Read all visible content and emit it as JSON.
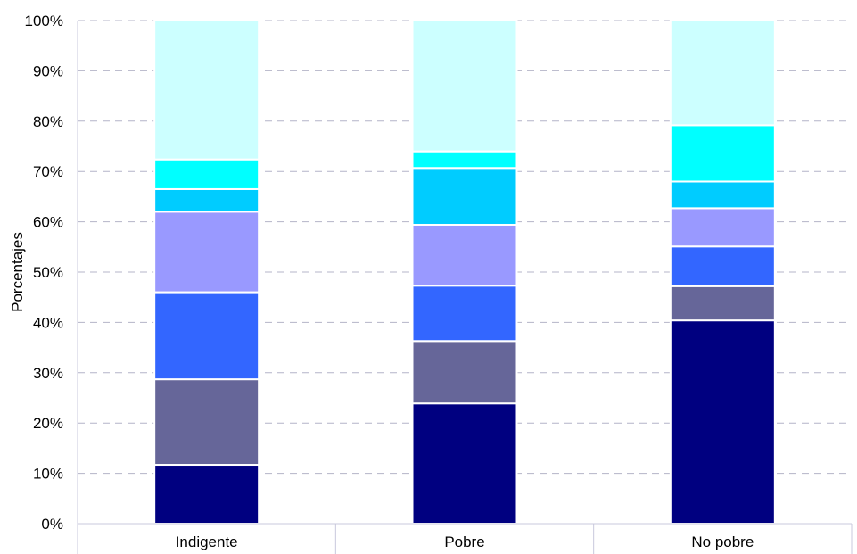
{
  "chart_data": {
    "type": "bar",
    "stacked": true,
    "percent": true,
    "ylabel": "Porcentajes",
    "ylim": [
      0,
      100
    ],
    "yticks": [
      "0%",
      "10%",
      "20%",
      "30%",
      "40%",
      "50%",
      "60%",
      "70%",
      "80%",
      "90%",
      "100%"
    ],
    "categories": [
      "Indigente",
      "Pobre",
      "No pobre"
    ],
    "grid": true,
    "series": [
      {
        "color": "#000080",
        "values": [
          11.7,
          23.9,
          40.4
        ]
      },
      {
        "color": "#666699",
        "values": [
          17.0,
          12.4,
          6.8
        ]
      },
      {
        "color": "#3366ff",
        "values": [
          17.3,
          11.0,
          7.9
        ]
      },
      {
        "color": "#9999ff",
        "values": [
          16.0,
          12.1,
          7.6
        ]
      },
      {
        "color": "#00ccff",
        "values": [
          4.5,
          11.3,
          5.3
        ]
      },
      {
        "color": "#00ffff",
        "values": [
          5.9,
          3.3,
          11.2
        ]
      },
      {
        "color": "#ccffff",
        "values": [
          27.6,
          26.0,
          20.8
        ]
      }
    ]
  }
}
